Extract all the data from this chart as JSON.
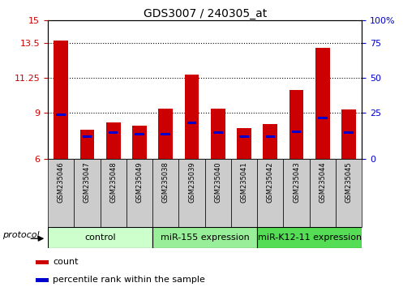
{
  "title": "GDS3007 / 240305_at",
  "samples": [
    "GSM235046",
    "GSM235047",
    "GSM235048",
    "GSM235049",
    "GSM235038",
    "GSM235039",
    "GSM235040",
    "GSM235041",
    "GSM235042",
    "GSM235043",
    "GSM235044",
    "GSM235045"
  ],
  "bar_heights": [
    13.7,
    7.9,
    8.4,
    8.2,
    9.3,
    11.5,
    9.3,
    8.0,
    8.3,
    10.5,
    13.2,
    9.2
  ],
  "blue_heights": [
    8.88,
    7.48,
    7.72,
    7.62,
    7.62,
    8.38,
    7.72,
    7.48,
    7.48,
    7.78,
    8.68,
    7.72
  ],
  "bar_color": "#cc0000",
  "blue_color": "#0000cc",
  "ymin": 6,
  "ymax": 15,
  "yticks_left": [
    6,
    9,
    11.25,
    13.5,
    15
  ],
  "yticks_right_vals": [
    0,
    25,
    50,
    75,
    100
  ],
  "yticks_right_pos": [
    6,
    9,
    11.25,
    13.5,
    15
  ],
  "grid_lines": [
    9,
    11.25,
    13.5
  ],
  "group_labels": [
    "control",
    "miR-155 expression",
    "miR-K12-11 expression"
  ],
  "group_starts": [
    0,
    4,
    8
  ],
  "group_ends": [
    4,
    8,
    12
  ],
  "group_colors": [
    "#ccffcc",
    "#99ee99",
    "#55dd55"
  ],
  "protocol_label": "protocol",
  "legend_count": "count",
  "legend_percentile": "percentile rank within the sample",
  "bg_color": "#ffffff",
  "tick_label_color_left": "#cc0000",
  "tick_label_color_right": "#0000cc",
  "bar_width": 0.55,
  "bar_base": 6,
  "title_fontsize": 10,
  "tick_fontsize": 8,
  "xlabel_fontsize": 6,
  "group_fontsize": 8,
  "legend_fontsize": 8
}
